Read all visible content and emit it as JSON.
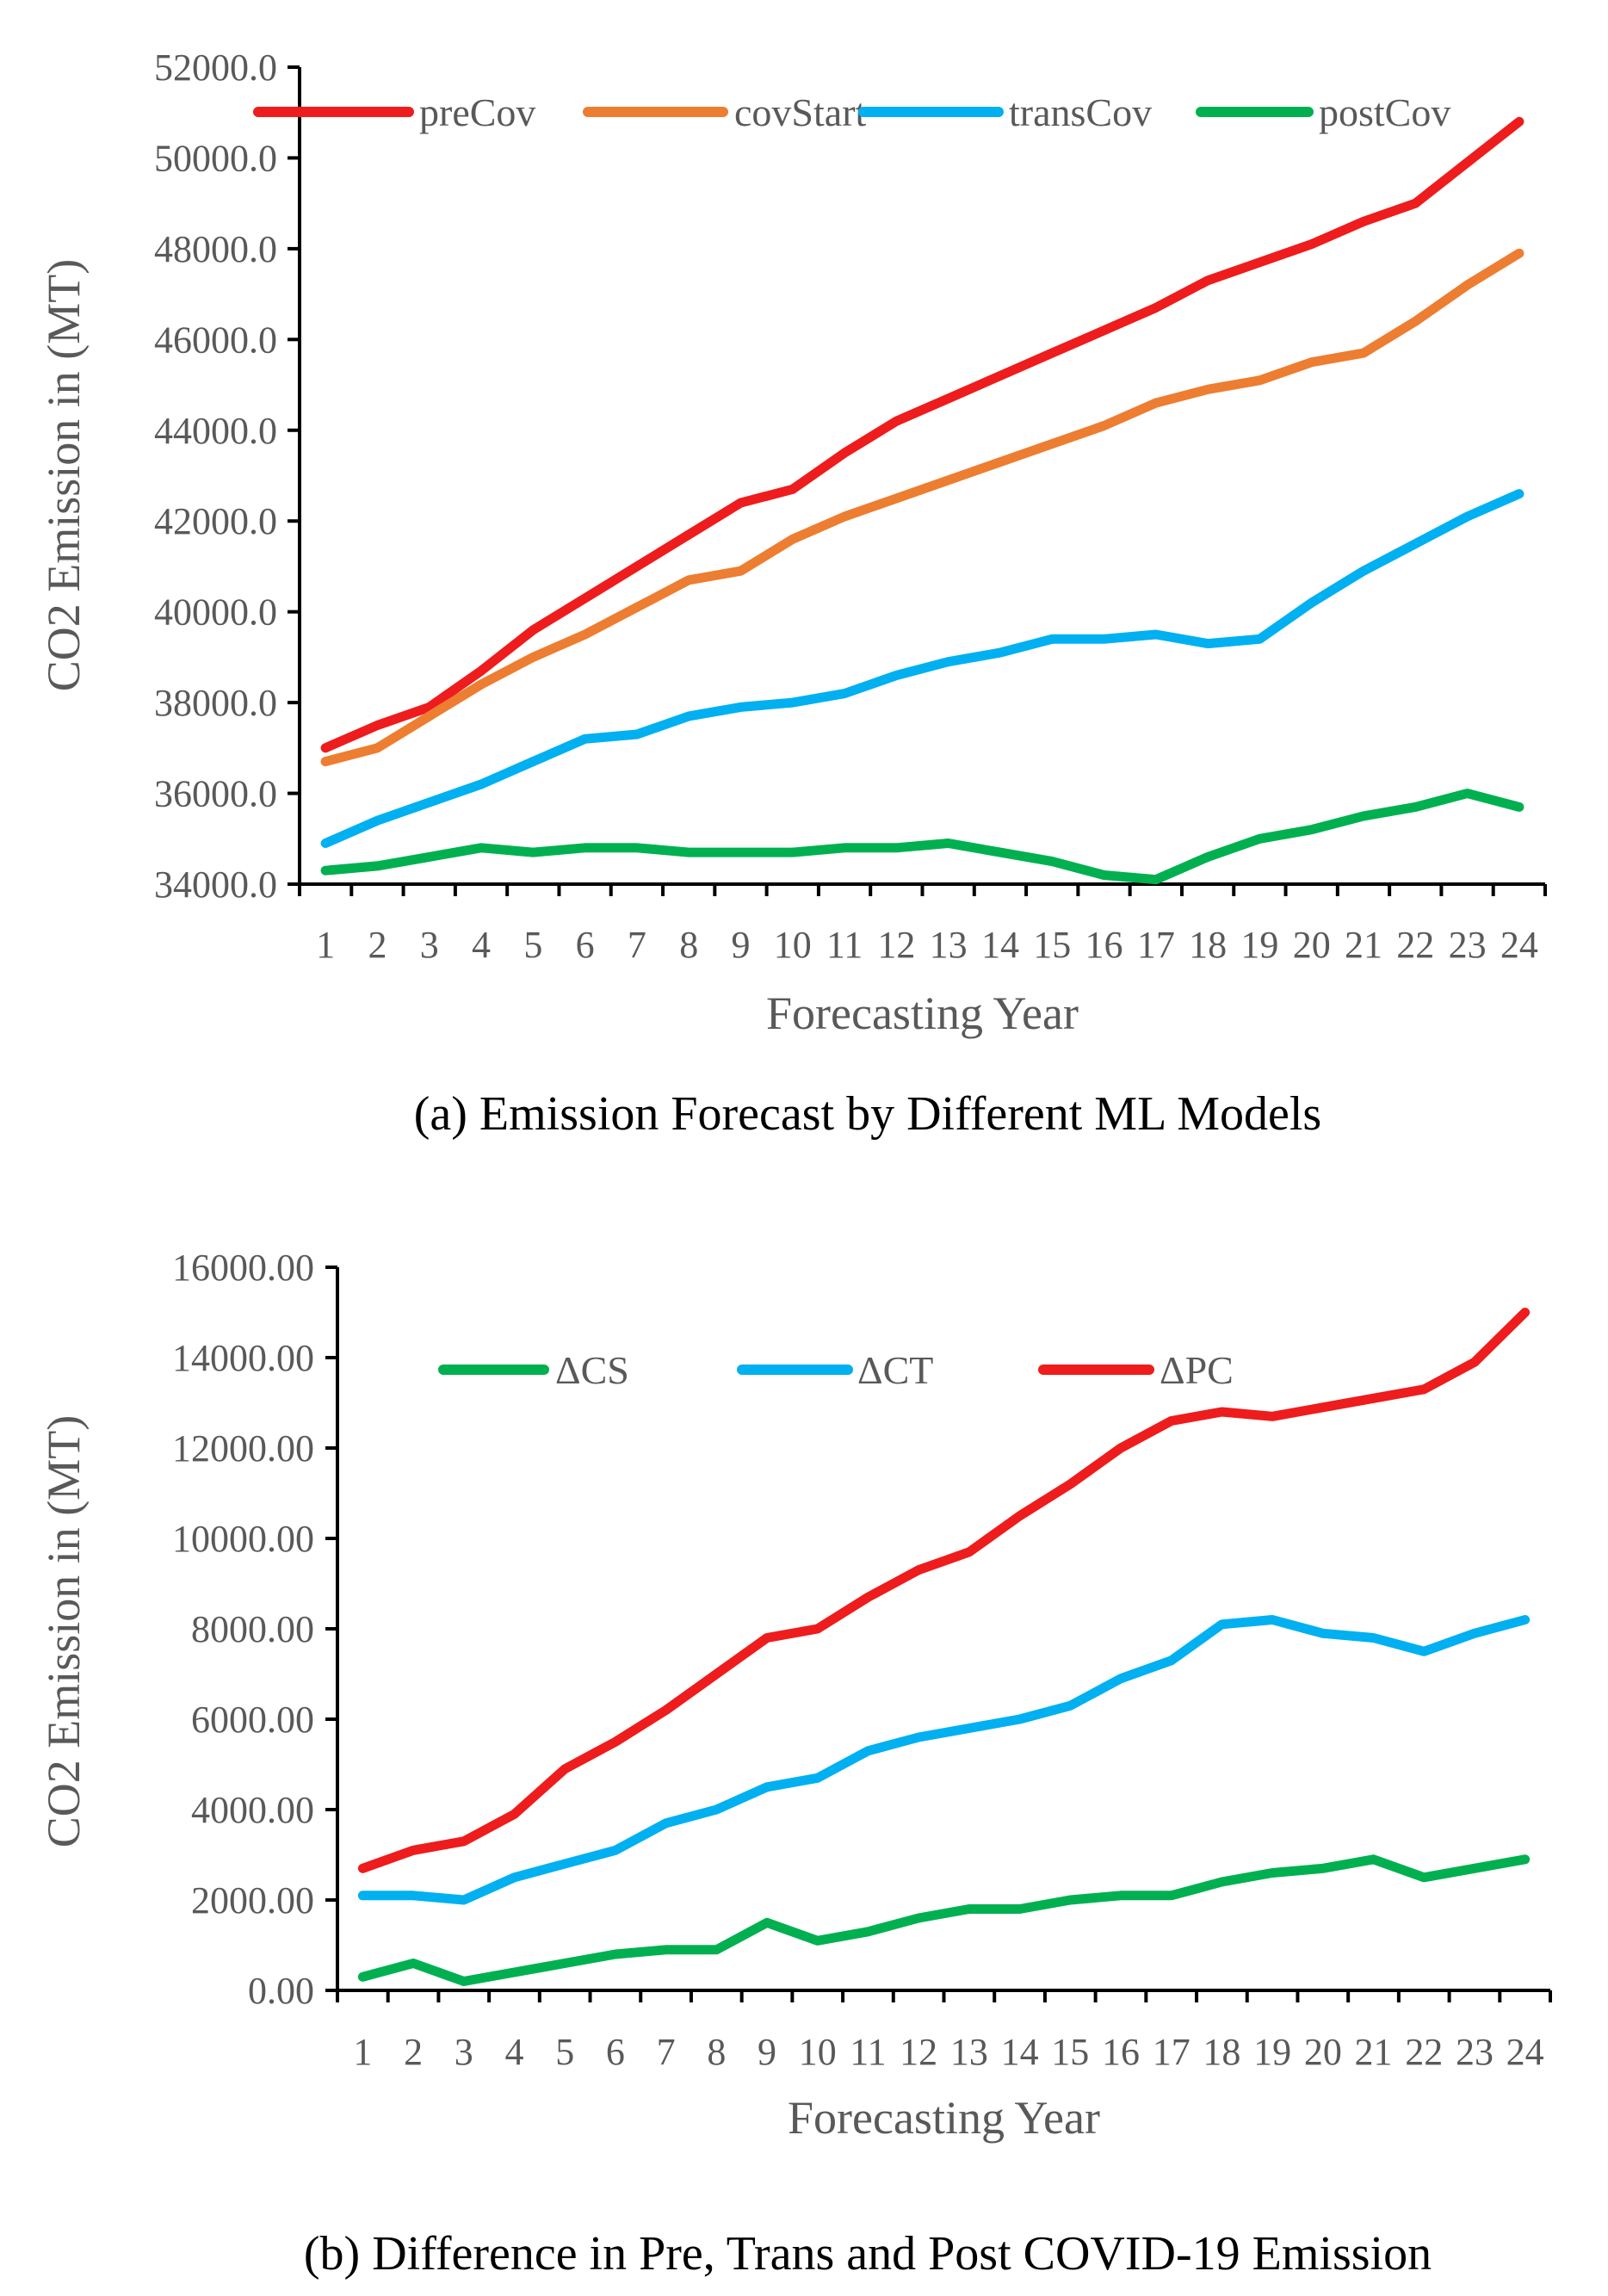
{
  "chart_data": [
    {
      "type": "line",
      "caption": "(a) Emission Forecast by Different ML Models",
      "xlabel": "Forecasting Year",
      "ylabel": "CO2 Emission in (MT)",
      "categories": [
        "1",
        "2",
        "3",
        "4",
        "5",
        "6",
        "7",
        "8",
        "9",
        "10",
        "11",
        "12",
        "13",
        "14",
        "15",
        "16",
        "17",
        "18",
        "19",
        "20",
        "21",
        "22",
        "23",
        "24"
      ],
      "ylim": [
        34000,
        52000
      ],
      "yticks": [
        "34000.0",
        "36000.0",
        "38000.0",
        "40000.0",
        "42000.0",
        "44000.0",
        "46000.0",
        "48000.0",
        "50000.0",
        "52000.0"
      ],
      "ytick_values": [
        34000,
        36000,
        38000,
        40000,
        42000,
        44000,
        46000,
        48000,
        50000,
        52000
      ],
      "legend_position": "top",
      "series": [
        {
          "name": "preCov",
          "color": "#EE1C1C",
          "values": [
            37000,
            37500,
            37900,
            38700,
            39600,
            40300,
            41000,
            41700,
            42400,
            42700,
            43500,
            44200,
            44700,
            45200,
            45700,
            46200,
            46700,
            47300,
            47700,
            48100,
            48600,
            49000,
            49900,
            50800
          ]
        },
        {
          "name": "covStart",
          "color": "#ED7D31",
          "values": [
            36700,
            37000,
            37700,
            38400,
            39000,
            39500,
            40100,
            40700,
            40900,
            41600,
            42100,
            42500,
            42900,
            43300,
            43700,
            44100,
            44600,
            44900,
            45100,
            45500,
            45700,
            46400,
            47200,
            47900
          ]
        },
        {
          "name": "transCov",
          "color": "#00B0F0",
          "values": [
            34900,
            35400,
            35800,
            36200,
            36700,
            37200,
            37300,
            37700,
            37900,
            38000,
            38200,
            38600,
            38900,
            39100,
            39400,
            39400,
            39500,
            39300,
            39400,
            40200,
            40900,
            41500,
            42100,
            42600
          ]
        },
        {
          "name": "postCov",
          "color": "#00B050",
          "values": [
            34300,
            34400,
            34600,
            34800,
            34700,
            34800,
            34800,
            34700,
            34700,
            34700,
            34800,
            34800,
            34900,
            34700,
            34500,
            34200,
            34100,
            34600,
            35000,
            35200,
            35500,
            35700,
            36000,
            35700
          ]
        }
      ]
    },
    {
      "type": "line",
      "caption": "(b) Difference in Pre, Trans and Post COVID-19 Emission",
      "xlabel": "Forecasting Year",
      "ylabel": "CO2 Emission in (MT)",
      "categories": [
        "1",
        "2",
        "3",
        "4",
        "5",
        "6",
        "7",
        "8",
        "9",
        "10",
        "11",
        "12",
        "13",
        "14",
        "15",
        "16",
        "17",
        "18",
        "19",
        "20",
        "21",
        "22",
        "23",
        "24"
      ],
      "ylim": [
        0,
        16000
      ],
      "yticks": [
        "0.00",
        "2000.00",
        "4000.00",
        "6000.00",
        "8000.00",
        "10000.00",
        "12000.00",
        "14000.00",
        "16000.00"
      ],
      "ytick_values": [
        0,
        2000,
        4000,
        6000,
        8000,
        10000,
        12000,
        14000,
        16000
      ],
      "legend_position": "top",
      "series": [
        {
          "name": "ΔCS",
          "color": "#00B050",
          "values": [
            300,
            600,
            200,
            400,
            600,
            800,
            900,
            900,
            1500,
            1100,
            1300,
            1600,
            1800,
            1800,
            2000,
            2100,
            2100,
            2400,
            2600,
            2700,
            2900,
            2500,
            2700,
            2900
          ]
        },
        {
          "name": "ΔCT",
          "color": "#00B0F0",
          "values": [
            2100,
            2100,
            2000,
            2500,
            2800,
            3100,
            3700,
            4000,
            4500,
            4700,
            5300,
            5600,
            5800,
            6000,
            6300,
            6900,
            7300,
            8100,
            8200,
            7900,
            7800,
            7500,
            7900,
            8200
          ]
        },
        {
          "name": "ΔPC",
          "color": "#EE1C1C",
          "values": [
            2700,
            3100,
            3300,
            3900,
            4900,
            5500,
            6200,
            7000,
            7800,
            8000,
            8700,
            9300,
            9700,
            10500,
            11200,
            12000,
            12600,
            12800,
            12700,
            12900,
            13100,
            13300,
            13900,
            15000
          ]
        }
      ]
    }
  ]
}
